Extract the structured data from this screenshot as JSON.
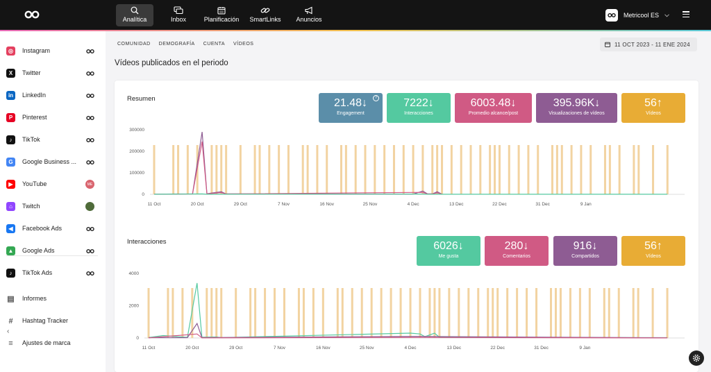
{
  "topnav": {
    "items": [
      {
        "label": "Analítica",
        "icon": "chart-search-icon",
        "active": true
      },
      {
        "label": "Inbox",
        "icon": "chat-icon"
      },
      {
        "label": "Planificación",
        "icon": "calendar-icon"
      },
      {
        "label": "SmartLinks",
        "icon": "link-icon"
      },
      {
        "label": "Anuncios",
        "icon": "megaphone-icon"
      }
    ],
    "user_name": "Metricool ES"
  },
  "sidebar": {
    "items": [
      {
        "label": "Instagram",
        "icon": "instagram-icon",
        "color": "#e4405f"
      },
      {
        "label": "Twitter",
        "icon": "x-twitter-icon",
        "color": "#111111"
      },
      {
        "label": "LinkedIn",
        "icon": "linkedin-icon",
        "color": "#0a66c2"
      },
      {
        "label": "Pinterest",
        "icon": "pinterest-icon",
        "color": "#e60023"
      },
      {
        "label": "TikTok",
        "icon": "tiktok-icon",
        "color": "#111111"
      },
      {
        "label": "Google Business ...",
        "icon": "google-business-icon",
        "color": "#4285f4"
      },
      {
        "label": "YouTube",
        "icon": "youtube-icon",
        "color": "#ff0000",
        "badge": "ME"
      },
      {
        "label": "Twitch",
        "icon": "twitch-icon",
        "color": "#9146ff"
      },
      {
        "label": "Facebook Ads",
        "icon": "megaphone-icon",
        "color": "#1877f2"
      },
      {
        "label": "Google Ads",
        "icon": "google-ads-icon",
        "color": "#34a853"
      },
      {
        "label": "TikTok Ads",
        "icon": "tiktok-icon",
        "color": "#111111"
      },
      {
        "label": "Informes",
        "icon": "document-icon",
        "color": "#555555"
      },
      {
        "label": "Hashtag Tracker",
        "icon": "hashtag-icon",
        "color": "#555555"
      },
      {
        "label": "Ajustes de marca",
        "icon": "sliders-icon",
        "color": "#555555"
      }
    ]
  },
  "tabs": [
    "COMUNIDAD",
    "DEMOGRAFÍA",
    "CUENTA",
    "VÍDEOS"
  ],
  "date_range": "11 OCT 2023 - 11 ENE 2024",
  "page_title": "Vídeos publicados en el periodo",
  "resumen": {
    "title": "Resumen",
    "kpis": [
      {
        "value": "21.48",
        "trend": "↓",
        "label": "Engagement",
        "color": "#5b8ea9"
      },
      {
        "value": "7222",
        "trend": "↓",
        "label": "Interacciones",
        "color": "#54c9a0"
      },
      {
        "value": "6003.48",
        "trend": "↓",
        "label": "Promedio alcance/post",
        "color": "#d05a84"
      },
      {
        "value": "395.96K",
        "trend": "↓",
        "label": "Visualizaciones de vídeos",
        "color": "#8e5c93"
      },
      {
        "value": "56",
        "trend": "↑",
        "label": "Vídeos",
        "color": "#e8ac35"
      }
    ]
  },
  "interacciones": {
    "title": "Interacciones",
    "kpis": [
      {
        "value": "6026",
        "trend": "↓",
        "label": "Me gusta",
        "color": "#54c9a0"
      },
      {
        "value": "280",
        "trend": "↓",
        "label": "Comentarios",
        "color": "#d05a84"
      },
      {
        "value": "916",
        "trend": "↓",
        "label": "Compartidos",
        "color": "#8e5c93"
      },
      {
        "value": "56",
        "trend": "↑",
        "label": "Vídeos",
        "color": "#e8ac35"
      }
    ]
  },
  "chart_data": [
    {
      "type": "line",
      "x_ticks": [
        "11 Oct",
        "20 Oct",
        "29 Oct",
        "7 Nov",
        "16 Nov",
        "25 Nov",
        "4 Dec",
        "13 Dec",
        "22 Dec",
        "31 Dec",
        "9 Jan"
      ],
      "ylim": [
        0,
        300000
      ],
      "y_ticks": [
        0,
        100000,
        200000,
        300000
      ],
      "video_days": [
        0,
        4,
        5,
        7,
        9,
        12,
        13,
        14,
        15,
        18,
        21,
        22,
        24,
        26,
        28,
        31,
        32,
        34,
        36,
        39,
        40,
        42,
        44,
        46,
        48,
        50,
        52,
        54,
        56,
        58,
        59,
        60,
        62,
        64,
        66,
        68,
        70,
        71,
        72,
        74,
        76,
        78,
        80,
        83,
        84,
        85,
        87,
        89,
        91,
        94,
        95,
        97,
        100,
        101,
        104,
        107
      ],
      "bar_color": "#f2d3a1",
      "series": [
        {
          "color": "#8e5c93",
          "points": [
            [
              0,
              1000
            ],
            [
              8,
              2000
            ],
            [
              10,
              290000
            ],
            [
              11,
              3000
            ],
            [
              14,
              12000
            ],
            [
              15,
              2000
            ],
            [
              54,
              1000
            ],
            [
              56,
              15000
            ],
            [
              57,
              2000
            ],
            [
              58,
              2000
            ],
            [
              59,
              12000
            ],
            [
              60,
              1000
            ]
          ]
        },
        {
          "color": "#d05a84",
          "points": [
            [
              0,
              800
            ],
            [
              8,
              1500
            ],
            [
              10,
              245000
            ],
            [
              11,
              2000
            ],
            [
              14,
              8000
            ],
            [
              15,
              1500
            ],
            [
              56,
              9000
            ],
            [
              57,
              1500
            ],
            [
              58,
              1500
            ],
            [
              59,
              7000
            ],
            [
              60,
              800
            ]
          ]
        },
        {
          "color": "#54c9a0",
          "points": [
            [
              0,
              300
            ],
            [
              10,
              2000
            ],
            [
              11,
              300
            ],
            [
              56,
              1200
            ],
            [
              57,
              300
            ],
            [
              107,
              300
            ]
          ]
        }
      ]
    },
    {
      "type": "line",
      "x_ticks": [
        "11 Oct",
        "20 Oct",
        "29 Oct",
        "7 Nov",
        "16 Nov",
        "25 Nov",
        "4 Dec",
        "13 Dec",
        "22 Dec",
        "31 Dec",
        "9 Jan"
      ],
      "ylim": [
        0,
        4000
      ],
      "y_ticks": [
        0,
        2000,
        4000
      ],
      "video_days": [
        0,
        4,
        5,
        7,
        9,
        12,
        13,
        14,
        15,
        18,
        21,
        22,
        24,
        26,
        28,
        31,
        32,
        34,
        36,
        39,
        40,
        42,
        44,
        46,
        48,
        50,
        52,
        54,
        56,
        58,
        59,
        60,
        62,
        64,
        66,
        68,
        70,
        71,
        72,
        74,
        76,
        78,
        80,
        83,
        84,
        85,
        87,
        89,
        91,
        94,
        95,
        97,
        100,
        101,
        104,
        107
      ],
      "bar_color": "#f2d3a1",
      "series": [
        {
          "name": "Me gusta",
          "color": "#54c9a0",
          "points": [
            [
              0,
              30
            ],
            [
              3,
              150
            ],
            [
              8,
              40
            ],
            [
              10,
              3400
            ],
            [
              11,
              50
            ],
            [
              14,
              60
            ],
            [
              15,
              20
            ],
            [
              54,
              300
            ],
            [
              56,
              250
            ],
            [
              57,
              80
            ],
            [
              59,
              300
            ],
            [
              60,
              40
            ],
            [
              107,
              20
            ]
          ]
        },
        {
          "name": "Compartidos",
          "color": "#8e5c93",
          "points": [
            [
              0,
              20
            ],
            [
              8,
              20
            ],
            [
              10,
              900
            ],
            [
              11,
              20
            ],
            [
              56,
              100
            ],
            [
              59,
              90
            ],
            [
              107,
              10
            ]
          ]
        },
        {
          "name": "Comentarios",
          "color": "#d05a84",
          "points": [
            [
              0,
              10
            ],
            [
              10,
              250
            ],
            [
              11,
              10
            ],
            [
              56,
              40
            ],
            [
              59,
              30
            ],
            [
              107,
              5
            ]
          ]
        }
      ]
    }
  ]
}
